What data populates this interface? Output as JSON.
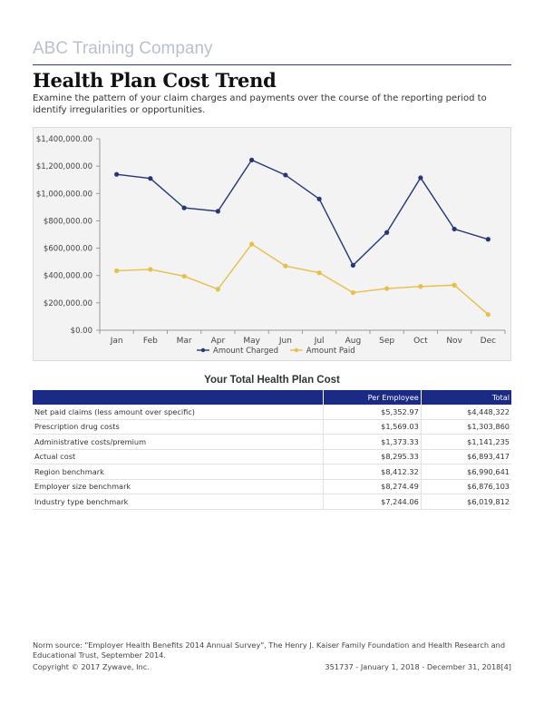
{
  "header": {
    "company": "ABC Training Company",
    "title": "Health Plan Cost Trend",
    "intro": "Examine the pattern of your claim charges and payments over the course of the reporting period to identify irregularities or opportunities."
  },
  "chart_data": {
    "type": "line",
    "categories": [
      "Jan",
      "Feb",
      "Mar",
      "Apr",
      "May",
      "Jun",
      "Jul",
      "Aug",
      "Sep",
      "Oct",
      "Nov",
      "Dec"
    ],
    "series": [
      {
        "name": "Amount Charged",
        "color": "#23377a",
        "values": [
          1140000,
          1110000,
          895000,
          870000,
          1245000,
          1135000,
          960000,
          475000,
          715000,
          1115000,
          740000,
          665000
        ]
      },
      {
        "name": "Amount Paid",
        "color": "#e7be48",
        "values": [
          435000,
          445000,
          395000,
          300000,
          630000,
          470000,
          420000,
          275000,
          305000,
          320000,
          330000,
          115000
        ]
      }
    ],
    "y_ticks": [
      "$0.00",
      "$200,000.00",
      "$400,000.00",
      "$600,000.00",
      "$800,000.00",
      "$1,000,000.00",
      "$1,200,000.00",
      "$1,400,000.00"
    ],
    "ylim": [
      0,
      1400000
    ],
    "legend": "bottom"
  },
  "cost_table": {
    "title": "Your Total Health Plan Cost",
    "columns": [
      "",
      "Per Employee",
      "Total"
    ],
    "rows": [
      {
        "label": "Net paid claims (less amount over specific)",
        "per_employee": "$5,352.97",
        "total": "$4,448,322"
      },
      {
        "label": "Prescription drug costs",
        "per_employee": "$1,569.03",
        "total": "$1,303,860"
      },
      {
        "label": "Administrative costs/premium",
        "per_employee": "$1,373.33",
        "total": "$1,141,235"
      },
      {
        "label": "Actual cost",
        "per_employee": "$8,295.33",
        "total": "$6,893,417"
      },
      {
        "label": "Region benchmark",
        "per_employee": "$8,412.32",
        "total": "$6,990,641"
      },
      {
        "label": "Employer size benchmark",
        "per_employee": "$8,274.49",
        "total": "$6,876,103"
      },
      {
        "label": "Industry type benchmark",
        "per_employee": "$7,244.06",
        "total": "$6,019,812"
      }
    ]
  },
  "footer": {
    "norm_source": "Norm source: \"Employer Health Benefits 2014 Annual Survey\", The Henry J. Kaiser Family Foundation and Health Research and Educational Trust, September 2014.",
    "copyright": "Copyright © 2017 Zywave, Inc.",
    "page_ref": "351737 - January 1, 2018 - December 31, 2018[4]"
  }
}
